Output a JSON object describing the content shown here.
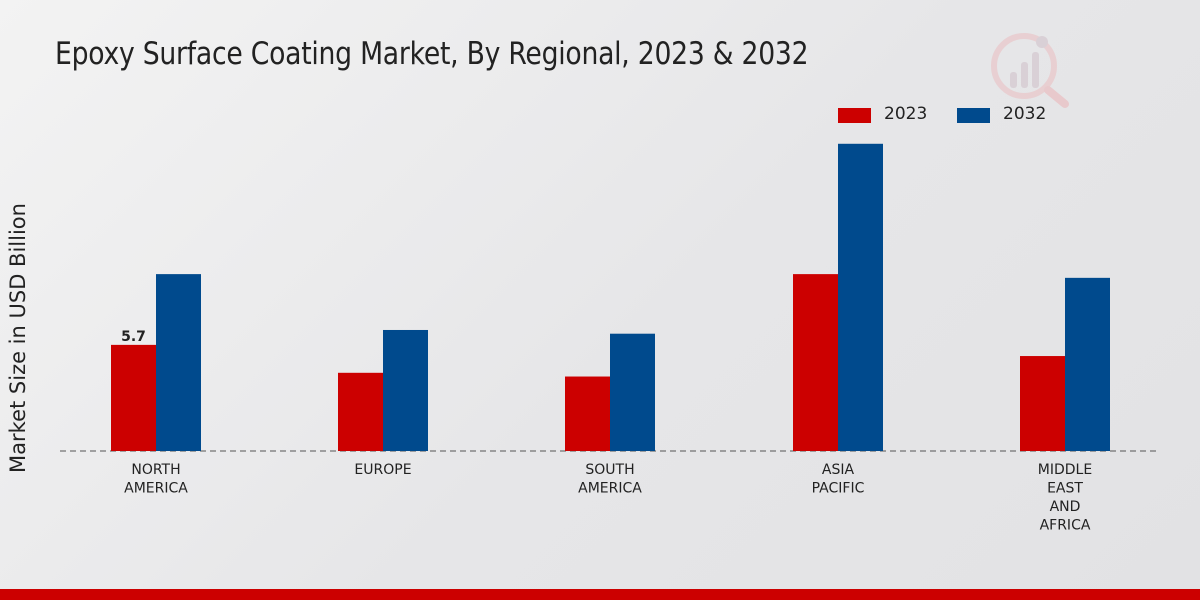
{
  "chart_data": {
    "type": "bar",
    "title": "Epoxy Surface Coating Market, By Regional, 2023 & 2032",
    "ylabel": "Market Size in USD Billion",
    "xlabel": "",
    "categories": [
      [
        "NORTH",
        "AMERICA"
      ],
      [
        "EUROPE"
      ],
      [
        "SOUTH",
        "AMERICA"
      ],
      [
        "ASIA",
        "PACIFIC"
      ],
      [
        "MIDDLE",
        "EAST",
        "AND",
        "AFRICA"
      ]
    ],
    "series": [
      {
        "name": "2023",
        "color": "#cc0000",
        "values": [
          5.7,
          4.2,
          4.0,
          9.5,
          5.1
        ]
      },
      {
        "name": "2032",
        "color": "#004a8d",
        "values": [
          9.5,
          6.5,
          6.3,
          16.5,
          9.3
        ]
      }
    ],
    "data_labels": [
      {
        "series": 0,
        "index": 0,
        "text": "5.7"
      }
    ],
    "ylim": [
      0,
      21
    ],
    "grid": false,
    "legend_position": "top-right"
  }
}
